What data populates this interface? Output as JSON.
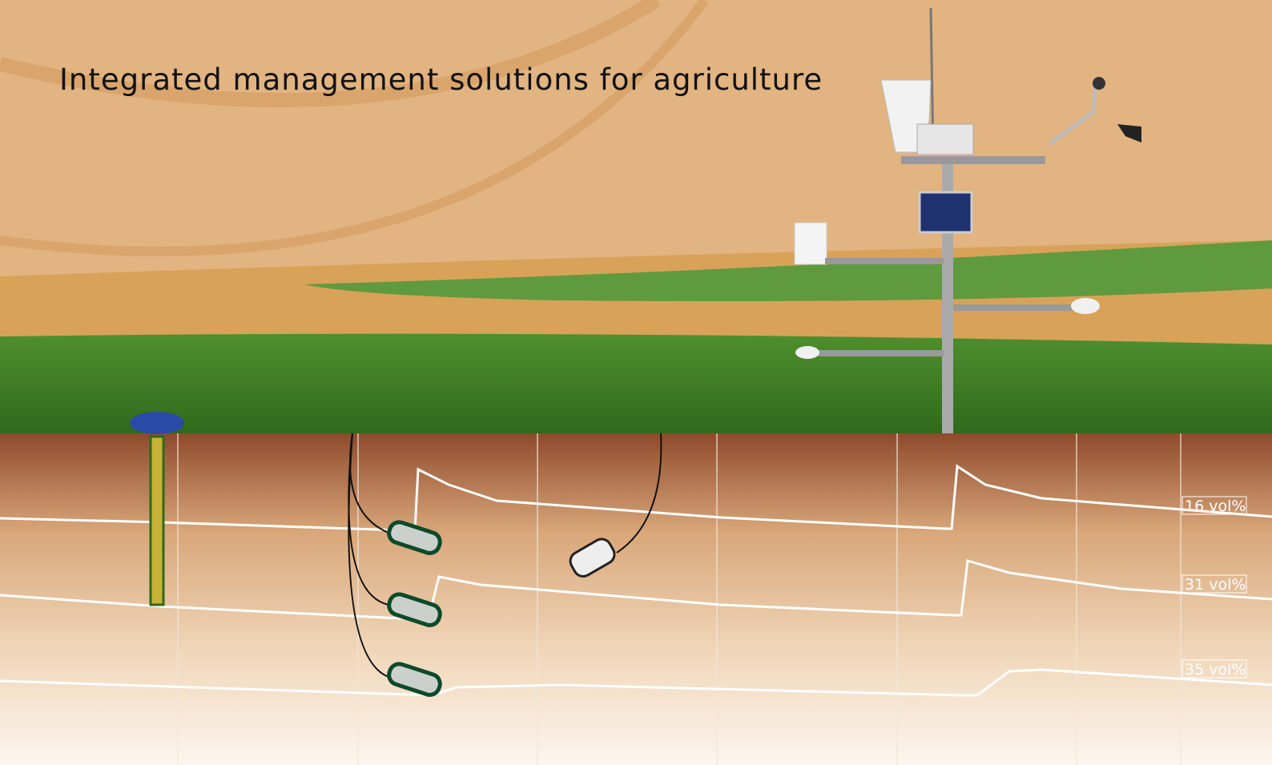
{
  "header": {
    "subtitle": "Integrated management solutions for agriculture"
  },
  "soil_labels": [
    "16 vol%",
    "31 vol%",
    "35 vol%"
  ]
}
